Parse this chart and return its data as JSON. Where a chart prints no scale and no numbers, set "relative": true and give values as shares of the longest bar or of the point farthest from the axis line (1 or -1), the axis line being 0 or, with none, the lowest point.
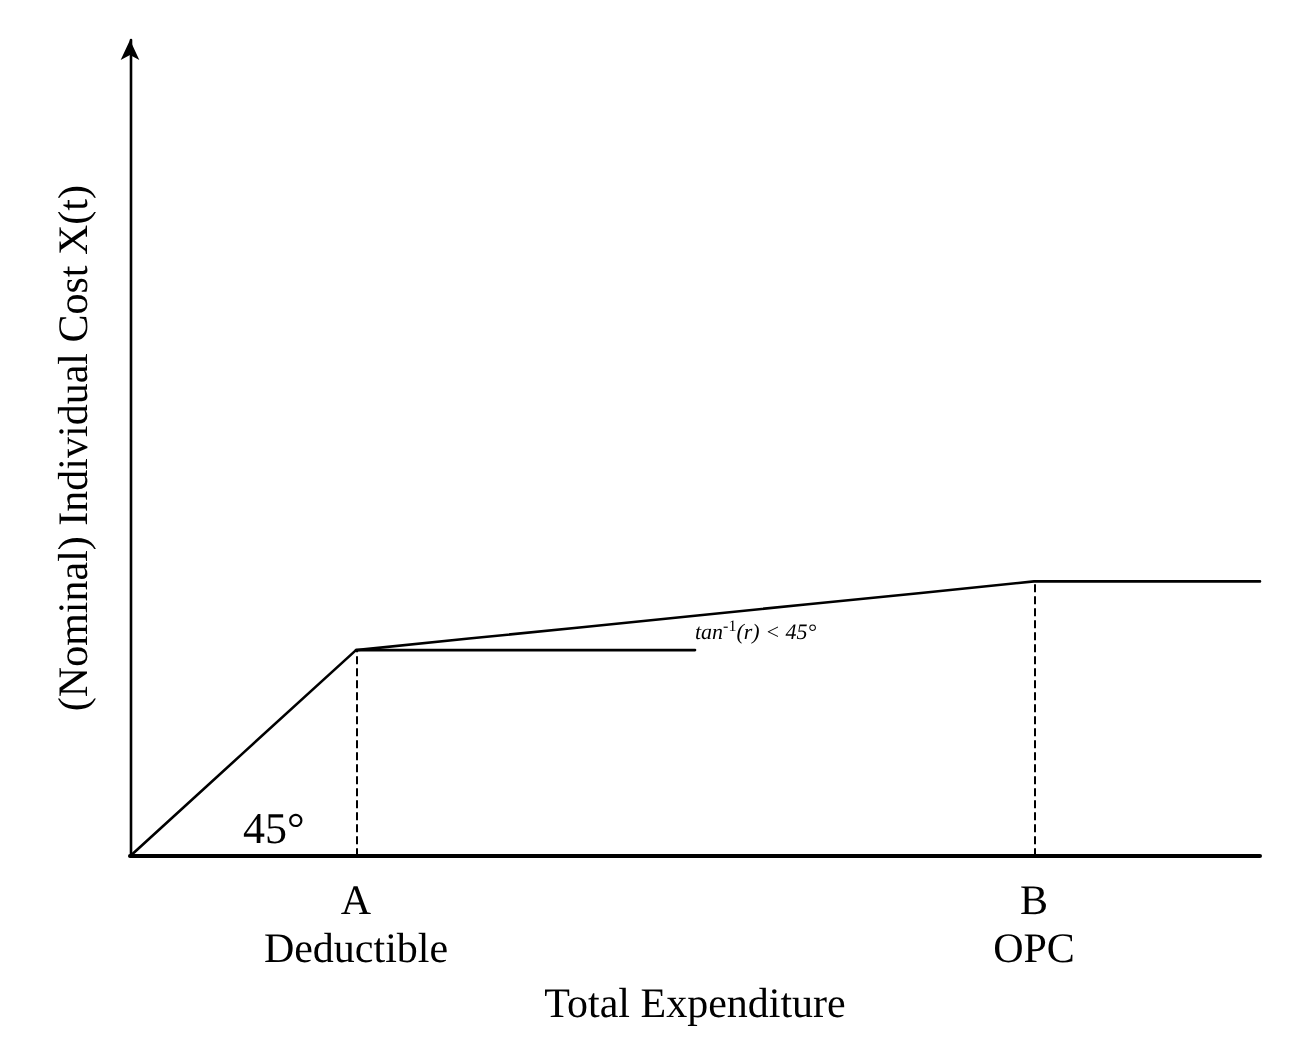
{
  "chart_data": {
    "type": "line",
    "relative": true,
    "xlabel": "Total Expenditure",
    "ylabel": "(Nominal) Individual Cost X(t)",
    "categories": [
      null,
      null,
      "A\nDeductible",
      null,
      null,
      null,
      null,
      null,
      "B\nOPC",
      null,
      null
    ],
    "series": [
      {
        "color": "#000000",
        "values": [
          0,
          0.375,
          0.75,
          0.792,
          0.833,
          0.875,
          0.917,
          0.958,
          1,
          1,
          1
        ]
      },
      {
        "color": "#000000",
        "values": [
          null,
          null,
          0.75,
          0.75,
          0.75,
          0.75,
          null,
          null,
          null,
          null,
          null
        ]
      }
    ],
    "ref_lines": [
      {
        "axis": "x",
        "value": "A\nDeductible",
        "line_style": "dashed",
        "color": "#000000"
      },
      {
        "axis": "x",
        "value": "B\nOPC",
        "line_style": "dashed",
        "color": "#000000"
      }
    ],
    "annotations": [
      "45°",
      "tan$^{-1}$(r) < 45°"
    ],
    "grid": false,
    "marker": "none",
    "line_style": "solid"
  }
}
